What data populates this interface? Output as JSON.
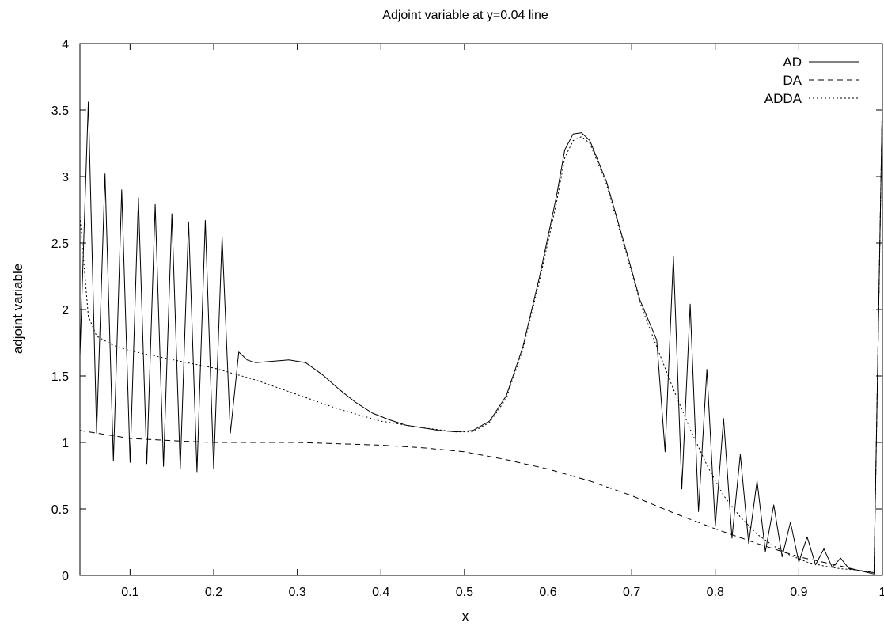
{
  "chart_data": {
    "type": "line",
    "title": "Adjoint variable at y=0.04 line",
    "xlabel": "x",
    "ylabel": "adjoint variable",
    "xlim": [
      0.04,
      1.0
    ],
    "ylim": [
      0,
      4
    ],
    "x_ticks": [
      "0.1",
      "0.2",
      "0.3",
      "0.4",
      "0.5",
      "0.6",
      "0.7",
      "0.8",
      "0.9",
      "1"
    ],
    "y_ticks": [
      "0",
      "0.5",
      "1",
      "1.5",
      "2",
      "2.5",
      "3",
      "3.5",
      "4"
    ],
    "grid": false,
    "legend_position": "top-right",
    "series": [
      {
        "name": "AD",
        "style": "solid",
        "color": "#000000",
        "points": [
          [
            0.04,
            1.65
          ],
          [
            0.05,
            3.56
          ],
          [
            0.06,
            1.07
          ],
          [
            0.07,
            3.02
          ],
          [
            0.08,
            0.86
          ],
          [
            0.09,
            2.9
          ],
          [
            0.1,
            0.85
          ],
          [
            0.11,
            2.84
          ],
          [
            0.12,
            0.84
          ],
          [
            0.13,
            2.79
          ],
          [
            0.14,
            0.82
          ],
          [
            0.15,
            2.72
          ],
          [
            0.16,
            0.8
          ],
          [
            0.17,
            2.66
          ],
          [
            0.18,
            0.78
          ],
          [
            0.19,
            2.67
          ],
          [
            0.2,
            0.8
          ],
          [
            0.21,
            2.55
          ],
          [
            0.22,
            1.07
          ],
          [
            0.23,
            1.68
          ],
          [
            0.24,
            1.62
          ],
          [
            0.25,
            1.6
          ],
          [
            0.27,
            1.61
          ],
          [
            0.29,
            1.62
          ],
          [
            0.31,
            1.6
          ],
          [
            0.33,
            1.51
          ],
          [
            0.35,
            1.4
          ],
          [
            0.37,
            1.3
          ],
          [
            0.39,
            1.22
          ],
          [
            0.41,
            1.17
          ],
          [
            0.43,
            1.13
          ],
          [
            0.45,
            1.11
          ],
          [
            0.47,
            1.09
          ],
          [
            0.49,
            1.08
          ],
          [
            0.51,
            1.09
          ],
          [
            0.53,
            1.16
          ],
          [
            0.55,
            1.35
          ],
          [
            0.57,
            1.72
          ],
          [
            0.59,
            2.25
          ],
          [
            0.61,
            2.85
          ],
          [
            0.62,
            3.2
          ],
          [
            0.63,
            3.32
          ],
          [
            0.64,
            3.33
          ],
          [
            0.65,
            3.27
          ],
          [
            0.67,
            2.96
          ],
          [
            0.69,
            2.52
          ],
          [
            0.71,
            2.07
          ],
          [
            0.73,
            1.77
          ],
          [
            0.74,
            0.93
          ],
          [
            0.75,
            2.4
          ],
          [
            0.76,
            0.65
          ],
          [
            0.77,
            2.04
          ],
          [
            0.78,
            0.48
          ],
          [
            0.79,
            1.55
          ],
          [
            0.8,
            0.37
          ],
          [
            0.81,
            1.18
          ],
          [
            0.82,
            0.28
          ],
          [
            0.83,
            0.91
          ],
          [
            0.84,
            0.24
          ],
          [
            0.85,
            0.71
          ],
          [
            0.86,
            0.18
          ],
          [
            0.87,
            0.53
          ],
          [
            0.88,
            0.14
          ],
          [
            0.89,
            0.4
          ],
          [
            0.9,
            0.1
          ],
          [
            0.91,
            0.29
          ],
          [
            0.92,
            0.08
          ],
          [
            0.93,
            0.2
          ],
          [
            0.94,
            0.06
          ],
          [
            0.95,
            0.13
          ],
          [
            0.96,
            0.05
          ],
          [
            0.97,
            0.04
          ],
          [
            0.99,
            0.01
          ],
          [
            1.0,
            3.6
          ]
        ]
      },
      {
        "name": "DA",
        "style": "dashed",
        "color": "#000000",
        "points": [
          [
            0.04,
            1.09
          ],
          [
            0.06,
            1.07
          ],
          [
            0.08,
            1.05
          ],
          [
            0.1,
            1.03
          ],
          [
            0.13,
            1.02
          ],
          [
            0.16,
            1.01
          ],
          [
            0.2,
            1.0
          ],
          [
            0.25,
            1.0
          ],
          [
            0.3,
            1.0
          ],
          [
            0.35,
            0.99
          ],
          [
            0.4,
            0.98
          ],
          [
            0.45,
            0.96
          ],
          [
            0.5,
            0.93
          ],
          [
            0.55,
            0.87
          ],
          [
            0.6,
            0.8
          ],
          [
            0.65,
            0.71
          ],
          [
            0.7,
            0.6
          ],
          [
            0.75,
            0.47
          ],
          [
            0.8,
            0.35
          ],
          [
            0.85,
            0.24
          ],
          [
            0.9,
            0.14
          ],
          [
            0.95,
            0.07
          ],
          [
            0.97,
            0.04
          ],
          [
            0.99,
            0.02
          ],
          [
            1.0,
            3.6
          ]
        ]
      },
      {
        "name": "ADDA",
        "style": "dotted",
        "color": "#000000",
        "points": [
          [
            0.04,
            2.7
          ],
          [
            0.05,
            1.95
          ],
          [
            0.06,
            1.8
          ],
          [
            0.08,
            1.73
          ],
          [
            0.1,
            1.69
          ],
          [
            0.13,
            1.65
          ],
          [
            0.16,
            1.61
          ],
          [
            0.2,
            1.56
          ],
          [
            0.25,
            1.47
          ],
          [
            0.3,
            1.36
          ],
          [
            0.35,
            1.25
          ],
          [
            0.4,
            1.16
          ],
          [
            0.45,
            1.11
          ],
          [
            0.49,
            1.08
          ],
          [
            0.51,
            1.08
          ],
          [
            0.53,
            1.15
          ],
          [
            0.55,
            1.33
          ],
          [
            0.57,
            1.7
          ],
          [
            0.59,
            2.22
          ],
          [
            0.61,
            2.8
          ],
          [
            0.62,
            3.14
          ],
          [
            0.63,
            3.27
          ],
          [
            0.64,
            3.3
          ],
          [
            0.65,
            3.25
          ],
          [
            0.67,
            2.94
          ],
          [
            0.69,
            2.5
          ],
          [
            0.71,
            2.05
          ],
          [
            0.73,
            1.72
          ],
          [
            0.75,
            1.4
          ],
          [
            0.77,
            1.1
          ],
          [
            0.79,
            0.83
          ],
          [
            0.81,
            0.6
          ],
          [
            0.83,
            0.44
          ],
          [
            0.85,
            0.31
          ],
          [
            0.87,
            0.22
          ],
          [
            0.89,
            0.15
          ],
          [
            0.91,
            0.1
          ],
          [
            0.93,
            0.07
          ],
          [
            0.95,
            0.05
          ],
          [
            0.97,
            0.04
          ],
          [
            0.99,
            0.02
          ],
          [
            1.0,
            3.6
          ]
        ]
      }
    ]
  }
}
